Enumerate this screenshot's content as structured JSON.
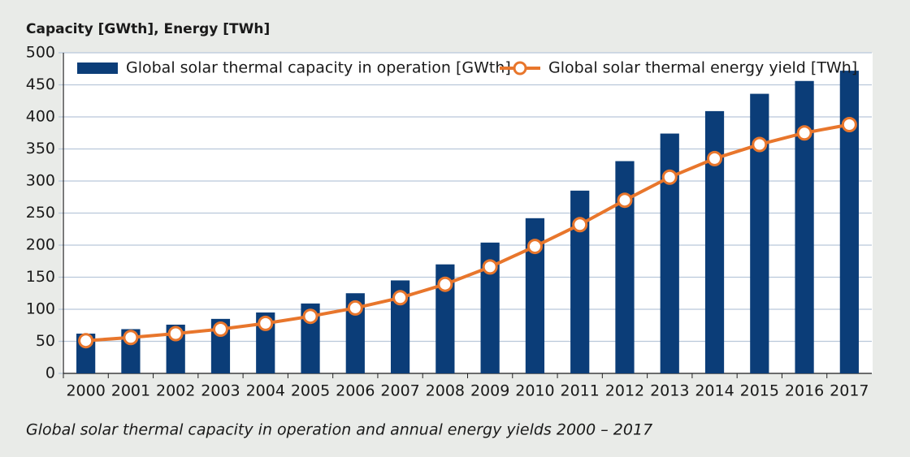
{
  "chart_data": {
    "type": "bar_line",
    "y_label": "Capacity [GWth], Energy [TWh]",
    "caption": "Global solar thermal capacity in operation and annual energy yields 2000 – 2017",
    "categories": [
      "2000",
      "2001",
      "2002",
      "2003",
      "2004",
      "2005",
      "2006",
      "2007",
      "2008",
      "2009",
      "2010",
      "2011",
      "2012",
      "2013",
      "2014",
      "2015",
      "2016",
      "2017"
    ],
    "series": [
      {
        "name": "Global solar thermal capacity in operation [GWth]",
        "kind": "bar",
        "color": "#0b3d78",
        "values": [
          62,
          69,
          76,
          85,
          95,
          109,
          125,
          145,
          170,
          204,
          242,
          285,
          331,
          374,
          409,
          436,
          456,
          472
        ]
      },
      {
        "name": "Global solar thermal energy yield [TWh]",
        "kind": "line",
        "color": "#e8762c",
        "values": [
          51,
          56,
          62,
          69,
          78,
          89,
          102,
          118,
          139,
          166,
          198,
          232,
          270,
          306,
          335,
          357,
          375,
          388
        ]
      }
    ],
    "ylim": [
      0,
      500
    ],
    "yticks": [
      0,
      50,
      100,
      150,
      200,
      250,
      300,
      350,
      400,
      450,
      500
    ],
    "grid": true,
    "legend": "top"
  }
}
